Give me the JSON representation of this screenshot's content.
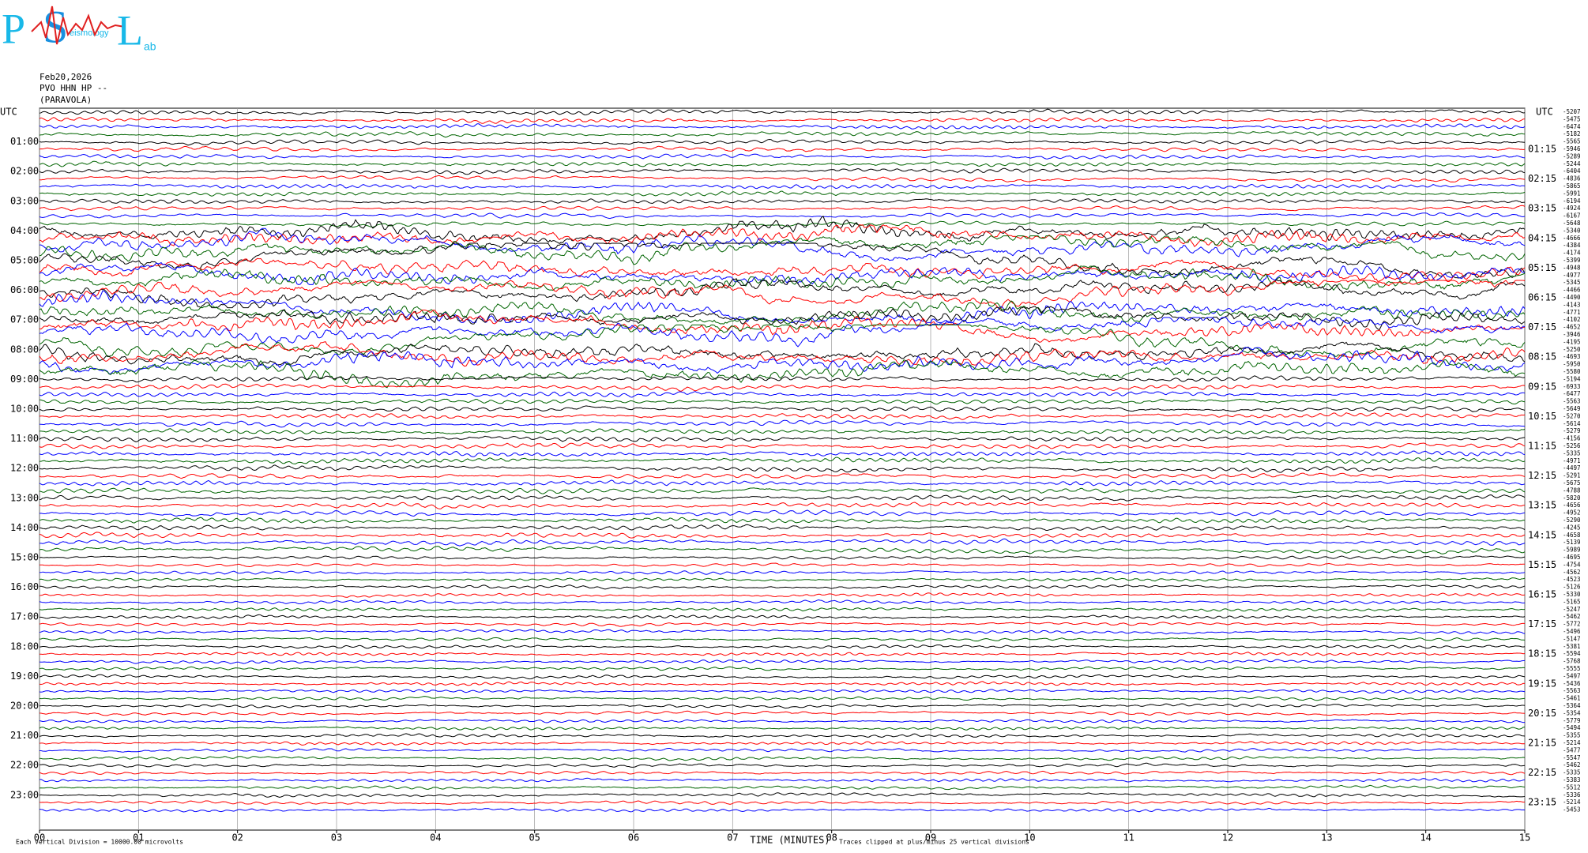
{
  "chart_data": {
    "type": "helicorder",
    "logo": [
      "P",
      "S",
      "eismology",
      "L",
      "ab"
    ],
    "date": "Feb20,2026",
    "station": "PVO HHN HP --",
    "site": "(PARAVOLA)",
    "tz_left": "UTC",
    "tz_right": "UTC",
    "left_labels": [
      "01:00",
      "02:00",
      "03:00",
      "04:00",
      "05:00",
      "06:00",
      "07:00",
      "08:00",
      "09:00",
      "10:00",
      "11:00",
      "12:00",
      "13:00",
      "14:00",
      "15:00",
      "16:00",
      "17:00",
      "18:00",
      "19:00",
      "20:00",
      "21:00",
      "22:00",
      "23:00"
    ],
    "right_labels": [
      "01:15",
      "02:15",
      "03:15",
      "04:15",
      "05:15",
      "06:15",
      "07:15",
      "08:15",
      "09:15",
      "10:15",
      "11:15",
      "12:15",
      "13:15",
      "14:15",
      "15:15",
      "16:15",
      "17:15",
      "18:15",
      "19:15",
      "20:15",
      "21:15",
      "22:15",
      "23:15"
    ],
    "offsets": [
      -5207,
      -5475,
      -6474,
      -5182,
      -5565,
      -5946,
      -5289,
      -5244,
      -6404,
      -4836,
      -5865,
      -5991,
      -6194,
      -4924,
      -6167,
      -5648,
      -5340,
      -4666,
      -4384,
      -4174,
      -5399,
      -4948,
      -4977,
      -5345,
      -4466,
      -4490,
      -4143,
      -4771,
      -4102,
      -4652,
      -3946,
      -4195,
      -5250,
      -4693,
      -5950,
      -5580,
      -5194,
      -6933,
      -6477,
      -5563,
      -5649,
      -5270,
      -5614,
      -5279,
      -4156,
      -5256,
      -5335,
      -4971,
      -4497,
      -5291,
      -5675,
      -4788,
      -5820,
      -4656,
      -4952,
      -5290,
      -4245,
      -4658,
      -5139,
      -5989,
      -4695,
      -4754,
      -4562,
      -4523,
      -5126,
      -5330,
      -5165,
      -5247,
      -5462,
      -5772,
      -5496,
      -5147,
      -5381,
      -5594,
      -5768,
      -5555,
      -5497,
      -5436,
      -5563,
      -5461,
      -5364,
      -5354,
      -5779,
      -5494,
      -5355,
      -5214,
      -5477,
      -5547,
      -5462,
      -5335,
      -5383,
      -5512,
      -5336,
      -5214,
      -5453
    ],
    "colors": [
      "#000000",
      "#ff0000",
      "#0000ff",
      "#006400"
    ],
    "xlim": [
      0,
      15
    ],
    "xticks": [
      {
        "value": 0,
        "label": "00"
      },
      {
        "value": 1,
        "label": "01"
      },
      {
        "value": 2,
        "label": "02"
      },
      {
        "value": 3,
        "label": "03"
      },
      {
        "value": 4,
        "label": "04"
      },
      {
        "value": 5,
        "label": "05"
      },
      {
        "value": 6,
        "label": "06"
      },
      {
        "value": 7,
        "label": "07"
      },
      {
        "value": 8,
        "label": "08"
      },
      {
        "value": 9,
        "label": "09"
      },
      {
        "value": 10,
        "label": "10"
      },
      {
        "value": 11,
        "label": "11"
      },
      {
        "value": 12,
        "label": "12"
      },
      {
        "value": 13,
        "label": "13"
      },
      {
        "value": 14,
        "label": "14"
      },
      {
        "value": 15,
        "label": "15"
      }
    ],
    "xlabel": "TIME (MINUTES)",
    "scale_note": "Each Vertical Division = 10000.00 microvolts",
    "clip_note": "Traces clipped at plus/minus 25 vertical divisions"
  }
}
